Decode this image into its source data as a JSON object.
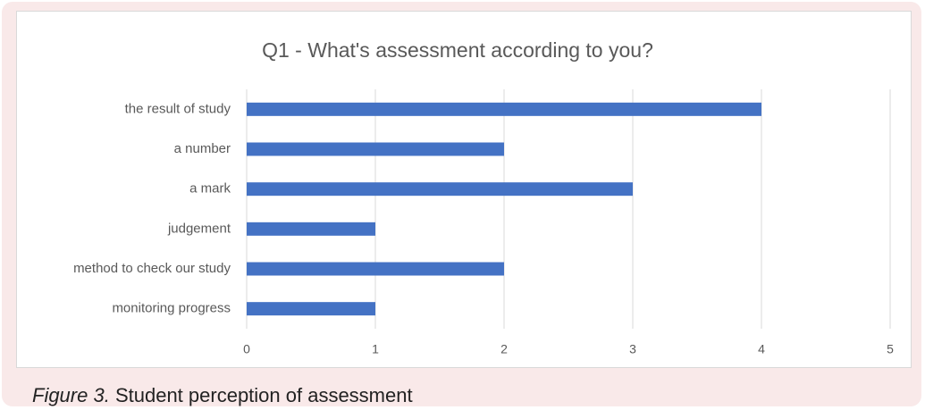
{
  "chart_data": {
    "type": "bar",
    "orientation": "horizontal",
    "title": "Q1 - What's assessment according to you?",
    "categories": [
      "the result of study",
      "a number",
      "a mark",
      "judgement",
      "method to check our study",
      "monitoring progress"
    ],
    "values": [
      4,
      2,
      3,
      1,
      2,
      1
    ],
    "color": "#4472c4",
    "xlim": [
      0,
      5
    ],
    "xticks": [
      0,
      1,
      2,
      3,
      4,
      5
    ],
    "grid": true
  },
  "caption": {
    "label": "Figure 3.",
    "text": "Student perception of assessment"
  }
}
